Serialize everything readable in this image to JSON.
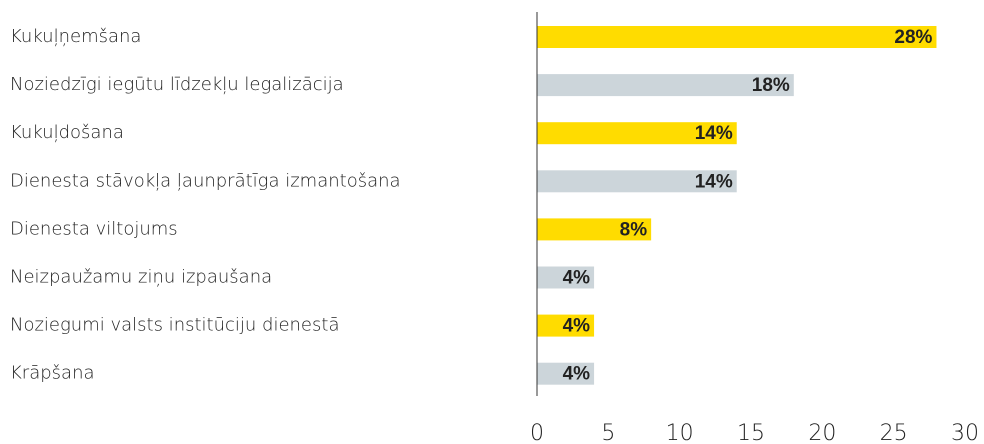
{
  "chart_data": {
    "type": "bar",
    "orientation": "horizontal",
    "categories": [
      "Kukuļņemšana",
      "Noziedzīgi iegūtu līdzekļu legalizācija",
      "Kukuļdošana",
      "Dienesta stāvokļa ļaunprātīga izmantošana",
      "Dienesta viltojums",
      "Neizpaužamu ziņu izpaušana",
      "Noziegumi valsts institūciju dienestā",
      "Krāpšana"
    ],
    "values": [
      28,
      18,
      14,
      14,
      8,
      4,
      4,
      4
    ],
    "value_labels": [
      "28%",
      "18%",
      "14%",
      "14%",
      "8%",
      "4%",
      "4%",
      "4%"
    ],
    "colors": [
      "#ffdc00",
      "#ccd5da",
      "#ffdc00",
      "#ccd5da",
      "#ffdc00",
      "#ccd5da",
      "#ffdc00",
      "#ccd5da"
    ],
    "xlim": [
      0,
      30
    ],
    "xticks": [
      0,
      5,
      10,
      15,
      20,
      25,
      30
    ]
  }
}
